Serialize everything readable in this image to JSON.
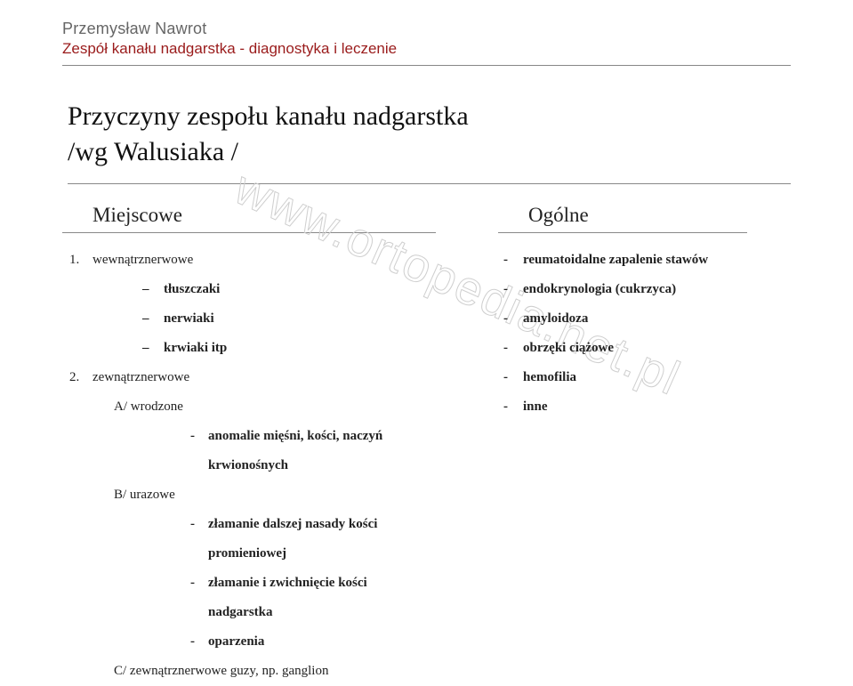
{
  "header": {
    "author": "Przemysław Nawrot",
    "subtitle": "Zespół kanału nadgarstka - diagnostyka i leczenie"
  },
  "title": {
    "line1": "Przyczyny zespołu kanału nadgarstka",
    "line2": "/wg Walusiaka /"
  },
  "watermark": "www.ortopedia.net.pl",
  "left": {
    "heading": "Miejscowe",
    "item1": {
      "num": "1.",
      "label": "wewnątrznerwowe"
    },
    "item1_sub": {
      "a": "tłuszczaki",
      "b": "nerwiaki",
      "c": "krwiaki itp"
    },
    "item2": {
      "num": "2.",
      "label": "zewnątrznerwowe"
    },
    "groupA": {
      "label": "A/ wrodzone"
    },
    "groupA_sub": {
      "a": "anomalie mięśni, kości, naczyń",
      "a2": "krwionośnych"
    },
    "groupB": {
      "label": "B/ urazowe"
    },
    "groupB_sub": {
      "a": "złamanie dalszej nasady kości",
      "a2": "promieniowej",
      "b": "złamanie i zwichnięcie kości",
      "b2": "nadgarstka",
      "c": "oparzenia"
    },
    "groupC": {
      "label": "C/ zewnątrznerwowe guzy, np. ganglion"
    }
  },
  "right": {
    "heading": "Ogólne",
    "items": {
      "a": "reumatoidalne zapalenie stawów",
      "b": "endokrynologia (cukrzyca)",
      "c": "amyloidoza",
      "d": "obrzęki ciążowe",
      "e": "hemofilia",
      "f": "inne"
    }
  }
}
